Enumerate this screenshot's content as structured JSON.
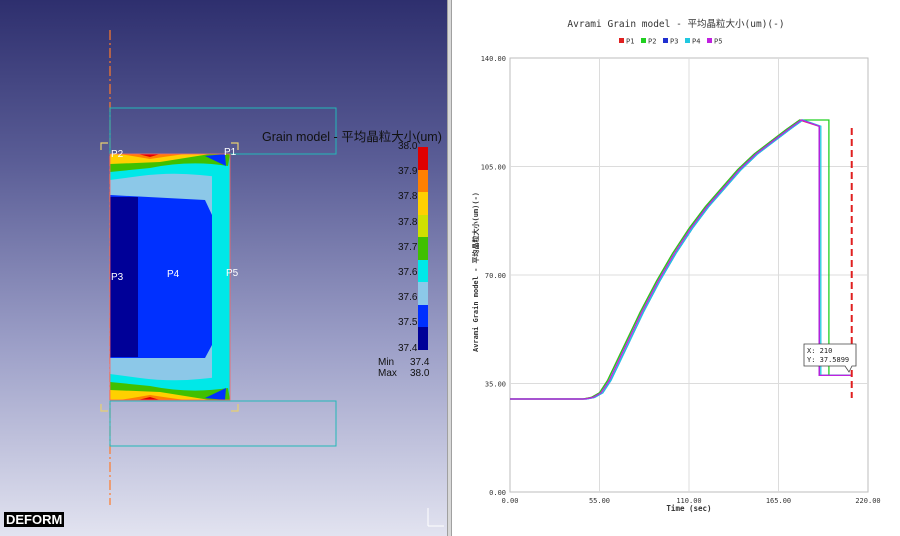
{
  "left_panel": {
    "legend": {
      "title": "Grain model - 平均晶粒大小(um)",
      "ticks": [
        "38.0",
        "37.9",
        "37.8",
        "37.8",
        "37.7",
        "37.6",
        "37.6",
        "37.5",
        "37.4"
      ],
      "colors": [
        "#e00000",
        "#ff8000",
        "#ffd000",
        "#cfe000",
        "#40c000",
        "#00e8e8",
        "#8cc8e8",
        "#0030ff",
        "#000098"
      ],
      "min_label": "Min",
      "min_value": "37.4",
      "max_label": "Max",
      "max_value": "38.0"
    },
    "points": [
      "P1",
      "P2",
      "P3",
      "P4",
      "P5"
    ],
    "logo": "DEFORM"
  },
  "chart_data": {
    "type": "line",
    "title": "Avrami Grain model - 平均晶粒大小(um)(-)",
    "xlabel": "Time (sec)",
    "ylabel": "Avrami Grain model - 平均晶粒大小(um)(-)",
    "xlim": [
      0,
      220
    ],
    "ylim": [
      0,
      140
    ],
    "xticks": [
      "0.00",
      "55.00",
      "110.00",
      "165.00",
      "220.00"
    ],
    "yticks": [
      "0.00",
      "35.00",
      "70.00",
      "105.00",
      "140.00"
    ],
    "grid": true,
    "legend_position": "top",
    "series": [
      {
        "name": "P1",
        "color": "#e02020",
        "points": [
          [
            0,
            30
          ],
          [
            45,
            30
          ],
          [
            50,
            30.5
          ],
          [
            55,
            32
          ],
          [
            60,
            36
          ],
          [
            70,
            47
          ],
          [
            80,
            58
          ],
          [
            90,
            68
          ],
          [
            100,
            77
          ],
          [
            110,
            85
          ],
          [
            120,
            92
          ],
          [
            130,
            98
          ],
          [
            140,
            104
          ],
          [
            150,
            109
          ],
          [
            160,
            113
          ],
          [
            170,
            117
          ],
          [
            178,
            120
          ],
          [
            190,
            118
          ],
          [
            190,
            37.6
          ],
          [
            210,
            37.6
          ]
        ]
      },
      {
        "name": "P2",
        "color": "#20d020",
        "points": [
          [
            0,
            30
          ],
          [
            45,
            30
          ],
          [
            50,
            30.5
          ],
          [
            55,
            32
          ],
          [
            60,
            36
          ],
          [
            70,
            47
          ],
          [
            80,
            58
          ],
          [
            90,
            68
          ],
          [
            100,
            77
          ],
          [
            110,
            85
          ],
          [
            120,
            92
          ],
          [
            130,
            98
          ],
          [
            140,
            104
          ],
          [
            150,
            109
          ],
          [
            160,
            113
          ],
          [
            170,
            117
          ],
          [
            178,
            120
          ],
          [
            196,
            120
          ],
          [
            196,
            37.6
          ],
          [
            210,
            37.6
          ]
        ]
      },
      {
        "name": "P3",
        "color": "#2030d0",
        "points": [
          [
            0,
            30
          ],
          [
            47,
            30
          ],
          [
            52,
            30.5
          ],
          [
            57,
            32
          ],
          [
            62,
            36
          ],
          [
            72,
            47
          ],
          [
            82,
            58
          ],
          [
            92,
            68
          ],
          [
            102,
            77
          ],
          [
            112,
            85
          ],
          [
            122,
            92
          ],
          [
            132,
            98
          ],
          [
            142,
            104
          ],
          [
            152,
            109
          ],
          [
            162,
            113
          ],
          [
            172,
            117
          ],
          [
            180,
            120
          ],
          [
            190,
            118
          ],
          [
            190,
            37.6
          ],
          [
            210,
            37.6
          ]
        ]
      },
      {
        "name": "P4",
        "color": "#20c8e0",
        "points": [
          [
            0,
            30
          ],
          [
            47,
            30
          ],
          [
            52,
            30.5
          ],
          [
            57,
            32
          ],
          [
            62,
            36
          ],
          [
            72,
            47
          ],
          [
            82,
            58
          ],
          [
            92,
            68
          ],
          [
            102,
            77
          ],
          [
            112,
            85
          ],
          [
            122,
            92
          ],
          [
            132,
            98
          ],
          [
            142,
            104
          ],
          [
            152,
            109
          ],
          [
            162,
            113
          ],
          [
            172,
            117
          ],
          [
            180,
            120
          ],
          [
            191,
            118
          ],
          [
            191,
            37.6
          ],
          [
            210,
            37.6
          ]
        ]
      },
      {
        "name": "P5",
        "color": "#c020e0",
        "points": [
          [
            0,
            30
          ],
          [
            46,
            30
          ],
          [
            51,
            30.5
          ],
          [
            56,
            32
          ],
          [
            61,
            36
          ],
          [
            71,
            47
          ],
          [
            81,
            58
          ],
          [
            91,
            68
          ],
          [
            101,
            77
          ],
          [
            111,
            85
          ],
          [
            121,
            92
          ],
          [
            131,
            98
          ],
          [
            141,
            104
          ],
          [
            151,
            109
          ],
          [
            161,
            113
          ],
          [
            171,
            117
          ],
          [
            179,
            120
          ],
          [
            190,
            118
          ],
          [
            190,
            37.6
          ],
          [
            210,
            37.6
          ]
        ]
      }
    ],
    "cursor": {
      "x": 210,
      "label_x": "X: 210",
      "label_y": "Y: 37.5899"
    }
  }
}
